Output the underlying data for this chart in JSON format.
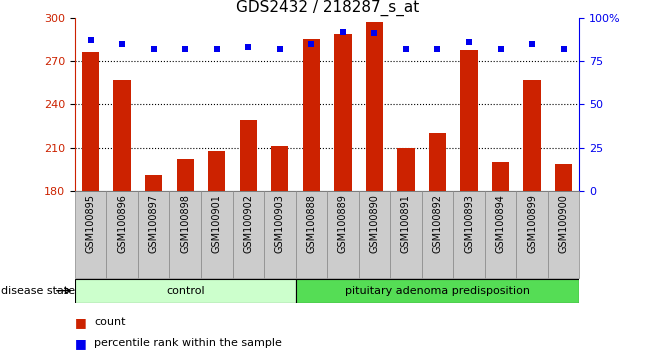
{
  "title": "GDS2432 / 218287_s_at",
  "samples": [
    "GSM100895",
    "GSM100896",
    "GSM100897",
    "GSM100898",
    "GSM100901",
    "GSM100902",
    "GSM100903",
    "GSM100888",
    "GSM100889",
    "GSM100890",
    "GSM100891",
    "GSM100892",
    "GSM100893",
    "GSM100894",
    "GSM100899",
    "GSM100900"
  ],
  "bar_values": [
    276,
    257,
    191,
    202,
    208,
    229,
    211,
    285,
    289,
    297,
    210,
    220,
    278,
    200,
    257,
    199
  ],
  "percentile_values": [
    87,
    85,
    82,
    82,
    82,
    83,
    82,
    85,
    92,
    91,
    82,
    82,
    86,
    82,
    85,
    82
  ],
  "ymin": 180,
  "ymax": 300,
  "yticks": [
    180,
    210,
    240,
    270,
    300
  ],
  "right_yticks_vals": [
    0,
    25,
    50,
    75,
    100
  ],
  "right_yticks_labels": [
    "0",
    "25",
    "50",
    "75",
    "100%"
  ],
  "bar_color": "#cc2200",
  "dot_color": "#0000ee",
  "grid_color": "#000000",
  "control_count": 7,
  "disease_count": 9,
  "control_label": "control",
  "disease_label": "pituitary adenoma predisposition",
  "disease_state_label": "disease state",
  "legend_bar_label": "count",
  "legend_dot_label": "percentile rank within the sample",
  "left_axis_color": "#cc2200",
  "right_axis_color": "#0000ee",
  "bar_width": 0.55,
  "tick_label_fontsize": 7,
  "title_fontsize": 11,
  "control_color_light": "#ccffcc",
  "control_color": "#ccffcc",
  "disease_color": "#55dd55",
  "gray_box_color": "#cccccc",
  "gray_box_edge": "#888888"
}
